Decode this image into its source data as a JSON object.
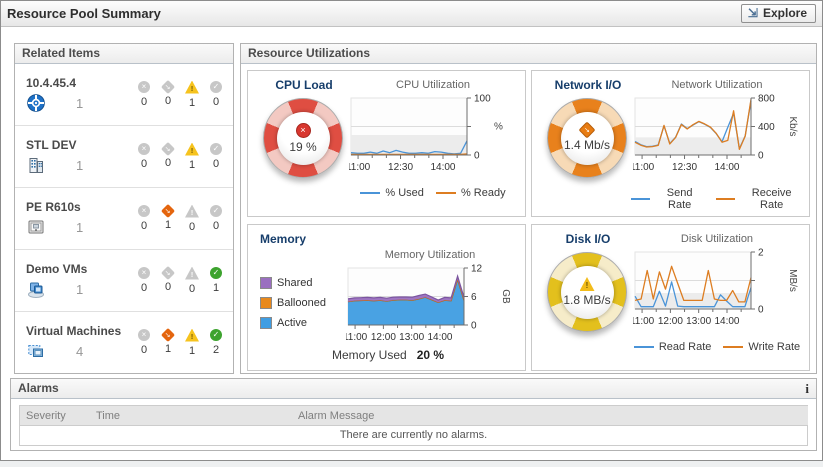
{
  "title_bar": {
    "title": "Resource Pool Summary",
    "explore_label": "Explore"
  },
  "related_items": {
    "header": "Related Items",
    "items": [
      {
        "name": "10.4.45.4",
        "icon": "host-icon",
        "count": "1",
        "statuses": [
          {
            "type": "fatal",
            "count": "0",
            "active": false
          },
          {
            "type": "critical",
            "count": "0",
            "active": false
          },
          {
            "type": "warning",
            "count": "1",
            "active": true
          },
          {
            "type": "normal",
            "count": "0",
            "active": false
          }
        ]
      },
      {
        "name": "STL DEV",
        "icon": "datacenter-icon",
        "count": "1",
        "statuses": [
          {
            "type": "fatal",
            "count": "0",
            "active": false
          },
          {
            "type": "critical",
            "count": "0",
            "active": false
          },
          {
            "type": "warning",
            "count": "1",
            "active": true
          },
          {
            "type": "normal",
            "count": "0",
            "active": false
          }
        ]
      },
      {
        "name": "PE R610s",
        "icon": "server-icon",
        "count": "1",
        "statuses": [
          {
            "type": "fatal",
            "count": "0",
            "active": false
          },
          {
            "type": "critical",
            "count": "1",
            "active": true
          },
          {
            "type": "warning",
            "count": "0",
            "active": false
          },
          {
            "type": "normal",
            "count": "0",
            "active": false
          }
        ]
      },
      {
        "name": "Demo VMs",
        "icon": "vm-group-icon",
        "count": "1",
        "statuses": [
          {
            "type": "fatal",
            "count": "0",
            "active": false
          },
          {
            "type": "critical",
            "count": "0",
            "active": false
          },
          {
            "type": "warning",
            "count": "0",
            "active": false
          },
          {
            "type": "normal",
            "count": "1",
            "active": true
          }
        ]
      },
      {
        "name": "Virtual Machines",
        "icon": "virtual-machine-icon",
        "count": "4",
        "statuses": [
          {
            "type": "fatal",
            "count": "0",
            "active": false
          },
          {
            "type": "critical",
            "count": "1",
            "active": true
          },
          {
            "type": "warning",
            "count": "1",
            "active": true
          },
          {
            "type": "normal",
            "count": "2",
            "active": true
          }
        ]
      }
    ]
  },
  "resource_utilizations": {
    "header": "Resource Utilizations",
    "cpu": {
      "title": "CPU Load",
      "gauge_value": "19 %",
      "gauge_severity": "fatal"
    },
    "network": {
      "title": "Network I/O",
      "gauge_value": "1.4 Mb/s",
      "gauge_severity": "critical"
    },
    "memory": {
      "title": "Memory",
      "used_label": "Memory Used",
      "used_value": "20 %"
    },
    "disk": {
      "title": "Disk I/O",
      "gauge_value": "1.8 MB/s",
      "gauge_severity": "warning"
    }
  },
  "chart_data": [
    {
      "id": "cpu",
      "type": "line",
      "title": "CPU Utilization",
      "unit": "%",
      "unit_rotated": false,
      "ylim": [
        0,
        100
      ],
      "band": 0.35,
      "yticks": [
        {
          "p": 0,
          "label": "0"
        },
        {
          "p": 0.5,
          "label": ""
        },
        {
          "p": 1,
          "label": "100"
        }
      ],
      "xticks": [
        {
          "p": 0.061,
          "label": "11:00"
        },
        {
          "p": 0.427,
          "label": "12:30"
        },
        {
          "p": 0.793,
          "label": "14:00"
        }
      ],
      "xminor": [
        0.183,
        0.305,
        0.549,
        0.671,
        0.915
      ],
      "legend_style": "line",
      "series": [
        {
          "name": "% Used",
          "color": "#4a94d8",
          "values": [
            4,
            3,
            3,
            5,
            3,
            7,
            4,
            8,
            5,
            3,
            3,
            4,
            3,
            6,
            5,
            3,
            2,
            3,
            25
          ]
        },
        {
          "name": "% Ready",
          "color": "#dd7d21",
          "values": [
            1,
            1,
            1,
            1,
            1,
            1,
            1,
            1,
            1,
            1,
            1,
            1,
            1,
            1,
            1,
            1,
            1,
            1,
            2
          ]
        }
      ]
    },
    {
      "id": "network",
      "type": "line",
      "title": "Network Utilization",
      "unit": "Kb/s",
      "unit_rotated": true,
      "ylim": [
        0,
        800
      ],
      "band": 0.31,
      "yticks": [
        {
          "p": 0,
          "label": "0"
        },
        {
          "p": 0.5,
          "label": "400"
        },
        {
          "p": 1,
          "label": "800"
        }
      ],
      "xticks": [
        {
          "p": 0.061,
          "label": "11:00"
        },
        {
          "p": 0.427,
          "label": "12:30"
        },
        {
          "p": 0.793,
          "label": "14:00"
        }
      ],
      "xminor": [
        0.183,
        0.305,
        0.549,
        0.671,
        0.915
      ],
      "legend_style": "line",
      "series": [
        {
          "name": "Send Rate",
          "color": "#4a94d8",
          "values": [
            190,
            145,
            118,
            122,
            140,
            410,
            160,
            250,
            435,
            370,
            420,
            468,
            432,
            388,
            300,
            185,
            390,
            585,
            90,
            268,
            760
          ]
        },
        {
          "name": "Receive Rate",
          "color": "#dd7d21",
          "values": [
            178,
            138,
            112,
            118,
            135,
            415,
            155,
            245,
            428,
            365,
            425,
            472,
            436,
            392,
            305,
            180,
            205,
            620,
            78,
            265,
            780
          ]
        }
      ]
    },
    {
      "id": "memory",
      "type": "area_stack",
      "title": "Memory Utilization",
      "unit": "GB",
      "unit_rotated": true,
      "ylim": [
        0,
        12
      ],
      "band": 0,
      "yticks": [
        {
          "p": 0,
          "label": "0"
        },
        {
          "p": 0.5,
          "label": "6"
        },
        {
          "p": 1,
          "label": "12"
        }
      ],
      "xticks": [
        {
          "p": 0.061,
          "label": "11:00"
        },
        {
          "p": 0.305,
          "label": "12:00"
        },
        {
          "p": 0.549,
          "label": "13:00"
        },
        {
          "p": 0.793,
          "label": "14:00"
        }
      ],
      "xminor": [
        0.183,
        0.427,
        0.671,
        0.915
      ],
      "legend_style": "square",
      "series": [
        {
          "name": "Active",
          "fill": "#3f9de2",
          "stroke": "#2e77b4",
          "values": [
            4.9,
            5.1,
            5.15,
            5.2,
            5.1,
            5.2,
            5.0,
            5.25,
            5.3,
            5.3,
            5.2,
            5.5,
            5.85,
            5.3,
            4.75,
            5.2,
            5.1,
            9.6,
            5.2
          ]
        },
        {
          "name": "Ballooned",
          "fill": "#e8891d",
          "stroke": "#c06f10",
          "values": [
            0,
            0,
            0,
            0,
            0,
            0,
            0,
            0,
            0,
            0,
            0,
            0,
            0,
            0,
            0,
            0,
            0,
            0,
            0
          ]
        },
        {
          "name": "Shared",
          "fill": "#9a6fc0",
          "stroke": "#7b55a0",
          "values": [
            0.6,
            0.6,
            0.6,
            0.6,
            0.6,
            0.6,
            0.65,
            0.6,
            0.6,
            0.6,
            0.65,
            0.7,
            0.65,
            0.6,
            0.5,
            0.6,
            0.6,
            0.7,
            0.6
          ]
        }
      ],
      "legend": [
        {
          "label": "Shared",
          "color": "#9a6fc0"
        },
        {
          "label": "Ballooned",
          "color": "#e8891d"
        },
        {
          "label": "Active",
          "color": "#3f9de2"
        }
      ]
    },
    {
      "id": "disk",
      "type": "line",
      "title": "Disk Utilization",
      "unit": "MB/s",
      "unit_rotated": true,
      "ylim": [
        0,
        2
      ],
      "band": 0.28,
      "yticks": [
        {
          "p": 0,
          "label": "0"
        },
        {
          "p": 0.5,
          "label": ""
        },
        {
          "p": 1,
          "label": "2"
        }
      ],
      "xticks": [
        {
          "p": 0.061,
          "label": "11:00"
        },
        {
          "p": 0.305,
          "label": "12:00"
        },
        {
          "p": 0.549,
          "label": "13:00"
        },
        {
          "p": 0.793,
          "label": "14:00"
        }
      ],
      "xminor": [
        0.183,
        0.427,
        0.671,
        0.915
      ],
      "legend_style": "line",
      "series": [
        {
          "name": "Read Rate",
          "color": "#4a94d8",
          "values": [
            0.45,
            0.08,
            0.08,
            0.08,
            0.62,
            0.1,
            0.95,
            0.1,
            0.08,
            0.08,
            0.08,
            0.08,
            0.08,
            0.08,
            0.5,
            0.28,
            0.08,
            0.08,
            0.08,
            0.75
          ]
        },
        {
          "name": "Write Rate",
          "color": "#dd7d21",
          "values": [
            0.3,
            0.35,
            1.35,
            0.35,
            1.3,
            0.7,
            1.5,
            0.9,
            0.3,
            0.3,
            0.3,
            0.3,
            1.35,
            0.35,
            0.3,
            0.3,
            0.65,
            0.25,
            0.25,
            1.1
          ]
        }
      ]
    }
  ],
  "alarms": {
    "header": "Alarms",
    "info_icon": "i",
    "columns": [
      "Severity",
      "Time",
      "Alarm Message"
    ],
    "empty_message": "There are currently no alarms."
  },
  "colors": {
    "severity_fatal": "#cf3a31",
    "severity_critical": "#e4650e",
    "severity_warning": "#f6c31e",
    "severity_normal": "#3da32e",
    "series_blue": "#4a94d8",
    "series_orange": "#dd7d21",
    "title_navy": "#173e6b"
  }
}
